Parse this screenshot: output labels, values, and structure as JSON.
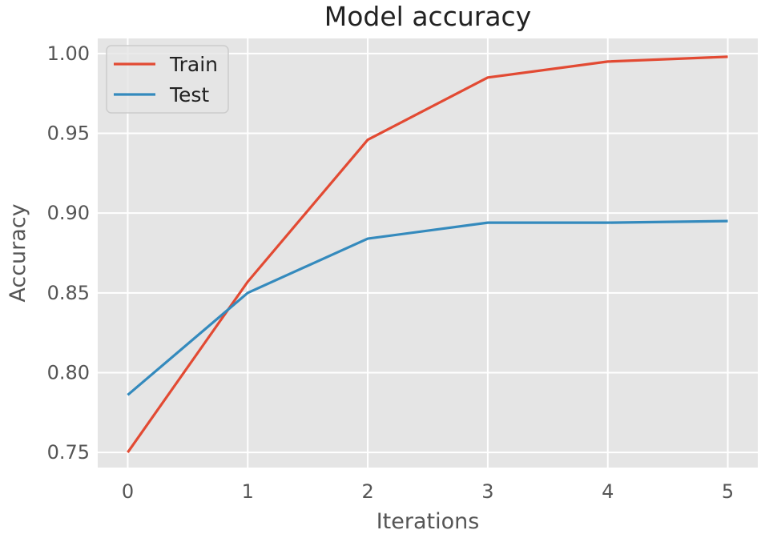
{
  "chart_data": {
    "type": "line",
    "title": "Model accuracy",
    "xlabel": "Iterations",
    "ylabel": "Accuracy",
    "x": [
      0,
      1,
      2,
      3,
      4,
      5
    ],
    "xlim": [
      -0.25,
      5.25
    ],
    "ylim": [
      0.7405,
      1.0095
    ],
    "xticks": [
      0,
      1,
      2,
      3,
      4,
      5
    ],
    "xtick_labels": [
      "0",
      "1",
      "2",
      "3",
      "4",
      "5"
    ],
    "yticks": [
      0.75,
      0.8,
      0.85,
      0.9,
      0.95,
      1.0
    ],
    "ytick_labels": [
      "0.75",
      "0.80",
      "0.85",
      "0.90",
      "0.95",
      "1.00"
    ],
    "grid": true,
    "legend_position": "upper-left",
    "series": [
      {
        "name": "Train",
        "color": "#e24a33",
        "values": [
          0.75,
          0.857,
          0.946,
          0.985,
          0.995,
          0.998
        ]
      },
      {
        "name": "Test",
        "color": "#348abd",
        "values": [
          0.786,
          0.85,
          0.884,
          0.894,
          0.894,
          0.895
        ]
      }
    ],
    "colors": {
      "plot_background": "#e5e5e5",
      "grid": "#ffffff",
      "axis_text": "#555555",
      "title_text": "#222222"
    }
  }
}
